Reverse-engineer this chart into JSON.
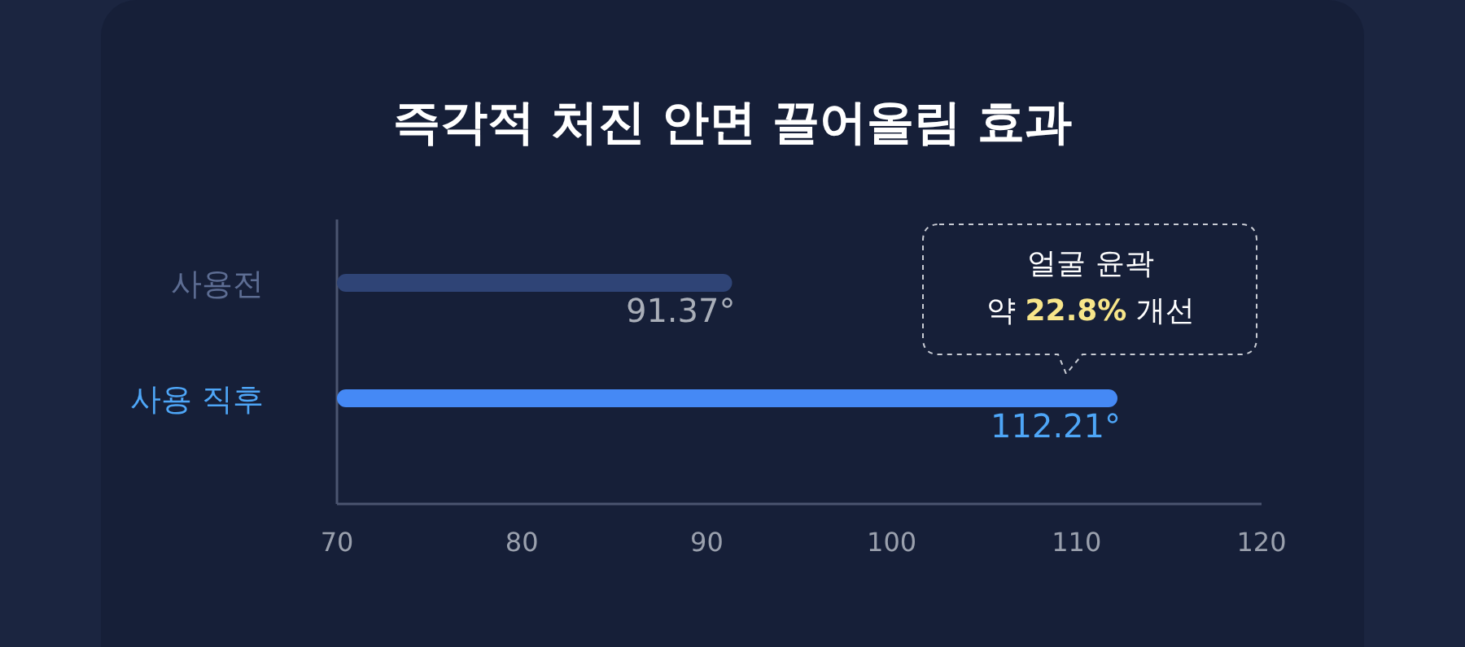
{
  "chart_data": {
    "type": "bar",
    "orientation": "horizontal",
    "title": "즉각적 처진 안면 끌어올림 효과",
    "categories": [
      "사용전",
      "사용 직후"
    ],
    "values": [
      91.37,
      112.21
    ],
    "colors": [
      "#2f4476",
      "#4589f5"
    ],
    "value_labels": [
      "91.37°",
      "112.21°"
    ],
    "xlim": [
      70,
      120
    ],
    "xticks": [
      70,
      80,
      90,
      100,
      110,
      120
    ],
    "annotations": [
      "얼굴 윤곽\n약 **22.8%** 개선"
    ]
  }
}
